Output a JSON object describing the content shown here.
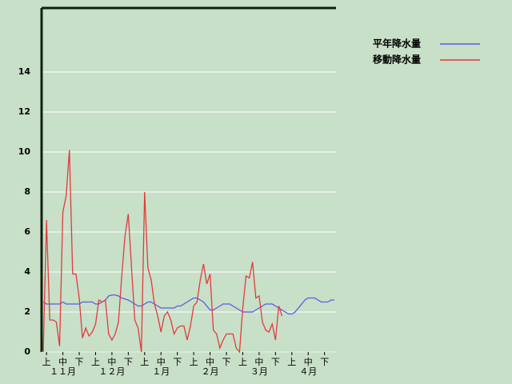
{
  "chart_data": {
    "type": "line",
    "categories": [
      null,
      "上",
      null,
      null,
      null,
      null,
      "中",
      null,
      null,
      null,
      null,
      "下",
      null,
      null,
      null,
      null,
      "上",
      null,
      null,
      null,
      null,
      "中",
      null,
      null,
      null,
      null,
      "下",
      null,
      null,
      null,
      null,
      "上",
      null,
      null,
      null,
      null,
      "中",
      null,
      null,
      null,
      null,
      "下",
      null,
      null,
      null,
      null,
      "上",
      null,
      null,
      null,
      null,
      "中",
      null,
      null,
      null,
      null,
      "下",
      null,
      null,
      null,
      null,
      "上",
      null,
      null,
      null,
      null,
      "中",
      null,
      null,
      null,
      null,
      "下",
      null,
      null,
      null,
      null,
      "上",
      null,
      null,
      null,
      null,
      "中",
      null,
      null,
      null,
      null,
      "下",
      null,
      null,
      null
    ],
    "months": [
      "１１月",
      "１２月",
      "１月",
      "２月",
      "３月",
      "４月"
    ],
    "series": [
      {
        "name": "平年降水量",
        "color": "#5a5ae6",
        "values": [
          2.5,
          2.4,
          2.4,
          2.4,
          2.4,
          2.4,
          2.5,
          2.4,
          2.4,
          2.4,
          2.4,
          2.4,
          2.5,
          2.5,
          2.5,
          2.5,
          2.4,
          2.4,
          2.5,
          2.6,
          2.8,
          2.85,
          2.85,
          2.8,
          2.7,
          2.65,
          2.6,
          2.5,
          2.4,
          2.3,
          2.3,
          2.4,
          2.5,
          2.5,
          2.4,
          2.3,
          2.2,
          2.2,
          2.2,
          2.2,
          2.2,
          2.3,
          2.3,
          2.4,
          2.5,
          2.6,
          2.7,
          2.7,
          2.6,
          2.5,
          2.3,
          2.1,
          2.1,
          2.2,
          2.3,
          2.4,
          2.4,
          2.4,
          2.3,
          2.2,
          2.1,
          2.0,
          2.0,
          2.0,
          2.0,
          2.1,
          2.2,
          2.3,
          2.4,
          2.4,
          2.4,
          2.3,
          2.2,
          2.1,
          2.0,
          1.9,
          1.9,
          2.0,
          2.2,
          2.4,
          2.6,
          2.7,
          2.7,
          2.7,
          2.6,
          2.5,
          2.5,
          2.5,
          2.6,
          2.6
        ]
      },
      {
        "name": "移動降水量",
        "color": "#e03c3c",
        "values": [
          0,
          6.6,
          1.6,
          1.6,
          1.5,
          0.3,
          7.0,
          7.8,
          10.1,
          3.9,
          3.9,
          2.7,
          0.7,
          1.2,
          0.8,
          1.0,
          1.4,
          2.6,
          2.5,
          2.6,
          0.9,
          0.6,
          0.9,
          1.5,
          3.8,
          5.8,
          6.9,
          4.2,
          1.6,
          1.2,
          0.0,
          8.0,
          4.2,
          3.6,
          2.4,
          1.8,
          1.0,
          1.8,
          2.0,
          1.6,
          0.9,
          1.2,
          1.3,
          1.3,
          0.6,
          1.3,
          2.3,
          2.5,
          3.6,
          4.4,
          3.4,
          3.9,
          1.1,
          0.9,
          0.2,
          0.6,
          0.9,
          0.9,
          0.9,
          0.2,
          0.0,
          2.2,
          3.8,
          3.7,
          4.5,
          2.7,
          2.8,
          1.5,
          1.1,
          1.0,
          1.4,
          0.6,
          2.3,
          1.8,
          null,
          null,
          null,
          null,
          null,
          null,
          null,
          null,
          null,
          null,
          null,
          null,
          null,
          null,
          null,
          null
        ]
      }
    ],
    "ylim": [
      0,
      17.2
    ],
    "yticks": [
      0,
      2,
      4,
      6,
      8,
      10,
      12,
      14
    ],
    "grid": true
  }
}
